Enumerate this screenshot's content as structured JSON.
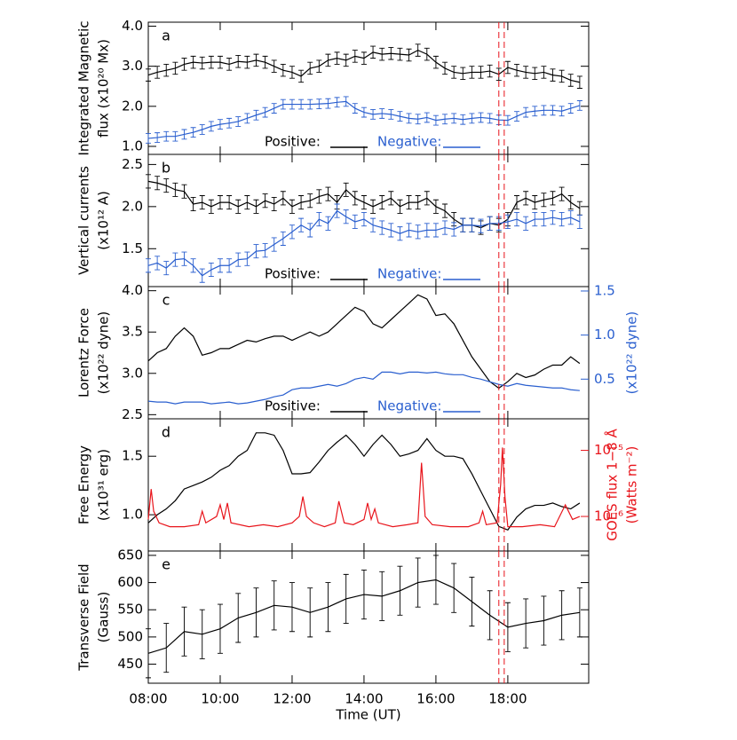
{
  "chart_data": [
    {
      "type": "line",
      "label": "a",
      "ylabel": [
        "Integrated Magnetic",
        "flux (x10²⁰ Mx)"
      ],
      "xlim": [
        8,
        20.25
      ],
      "ylim": [
        0.8,
        4.1
      ],
      "yticks": [
        {
          "value": 1,
          "label": "1.0"
        },
        {
          "value": 2,
          "label": "2.0"
        },
        {
          "value": 3,
          "label": "3.0"
        },
        {
          "value": 4,
          "label": "4.0"
        }
      ],
      "legend": "lower center",
      "vlines": [
        17.75,
        17.9
      ],
      "vline_color": "#e8141b",
      "x": [
        8,
        8.25,
        8.5,
        8.75,
        9,
        9.25,
        9.5,
        9.75,
        10,
        10.25,
        10.5,
        10.75,
        11,
        11.25,
        11.5,
        11.75,
        12,
        12.25,
        12.5,
        12.75,
        13,
        13.25,
        13.5,
        13.75,
        14,
        14.25,
        14.5,
        14.75,
        15,
        15.25,
        15.5,
        15.75,
        16,
        16.25,
        16.5,
        16.75,
        17,
        17.25,
        17.5,
        17.75,
        18,
        18.25,
        18.5,
        18.75,
        19,
        19.25,
        19.5,
        19.75,
        20
      ],
      "series": [
        {
          "name": "Positive:",
          "color": "#000000",
          "error": 0.15,
          "values": [
            2.78,
            2.85,
            2.9,
            2.95,
            3.05,
            3.1,
            3.08,
            3.1,
            3.1,
            3.05,
            3.12,
            3.1,
            3.15,
            3.1,
            3.0,
            2.9,
            2.85,
            2.75,
            2.95,
            3.0,
            3.15,
            3.2,
            3.15,
            3.25,
            3.2,
            3.35,
            3.3,
            3.32,
            3.3,
            3.28,
            3.4,
            3.3,
            3.1,
            2.95,
            2.85,
            2.82,
            2.85,
            2.85,
            2.88,
            2.8,
            2.97,
            2.9,
            2.85,
            2.82,
            2.85,
            2.78,
            2.75,
            2.65,
            2.6
          ]
        },
        {
          "name": "Negative:",
          "color": "#2a5fcf",
          "error": 0.12,
          "values": [
            1.2,
            1.22,
            1.25,
            1.25,
            1.3,
            1.35,
            1.42,
            1.5,
            1.55,
            1.58,
            1.62,
            1.7,
            1.78,
            1.85,
            1.95,
            2.05,
            2.05,
            2.05,
            2.05,
            2.06,
            2.07,
            2.1,
            2.12,
            1.95,
            1.85,
            1.8,
            1.82,
            1.8,
            1.75,
            1.7,
            1.68,
            1.72,
            1.65,
            1.68,
            1.7,
            1.67,
            1.7,
            1.72,
            1.7,
            1.66,
            1.65,
            1.75,
            1.85,
            1.88,
            1.9,
            1.9,
            1.88,
            1.95,
            2.02
          ]
        }
      ]
    },
    {
      "type": "line",
      "label": "b",
      "ylabel": [
        "Vertical currents",
        "(x10¹² A)"
      ],
      "xlim": [
        8,
        20.25
      ],
      "ylim": [
        1.05,
        2.62
      ],
      "yticks": [
        1.5,
        {
          "value": 2,
          "label": "2.0"
        },
        2.5
      ],
      "legend": "lower center",
      "vlines": [
        17.75,
        17.9
      ],
      "vline_color": "#e8141b",
      "x": [
        8,
        8.25,
        8.5,
        8.75,
        9,
        9.25,
        9.5,
        9.75,
        10,
        10.25,
        10.5,
        10.75,
        11,
        11.25,
        11.5,
        11.75,
        12,
        12.25,
        12.5,
        12.75,
        13,
        13.25,
        13.5,
        13.75,
        14,
        14.25,
        14.5,
        14.75,
        15,
        15.25,
        15.5,
        15.75,
        16,
        16.25,
        16.5,
        16.75,
        17,
        17.25,
        17.5,
        17.75,
        18,
        18.25,
        18.5,
        18.75,
        19,
        19.25,
        19.5,
        19.75,
        20
      ],
      "series": [
        {
          "name": "Positive:",
          "color": "#000000",
          "error": 0.08,
          "values": [
            2.3,
            2.28,
            2.25,
            2.2,
            2.18,
            2.03,
            2.05,
            2.0,
            2.05,
            2.05,
            2.0,
            2.05,
            2.0,
            2.07,
            2.03,
            2.1,
            2.0,
            2.05,
            2.07,
            2.12,
            2.15,
            2.05,
            2.2,
            2.1,
            2.05,
            2.0,
            2.05,
            2.1,
            2.0,
            2.05,
            2.05,
            2.1,
            2.0,
            1.95,
            1.85,
            1.78,
            1.78,
            1.75,
            1.8,
            1.78,
            1.85,
            2.05,
            2.1,
            2.05,
            2.08,
            2.1,
            2.15,
            2.05,
            1.98
          ]
        },
        {
          "name": "Negative:",
          "color": "#2a5fcf",
          "error": 0.08,
          "values": [
            1.3,
            1.33,
            1.27,
            1.37,
            1.38,
            1.3,
            1.18,
            1.25,
            1.3,
            1.3,
            1.37,
            1.38,
            1.47,
            1.48,
            1.55,
            1.62,
            1.7,
            1.78,
            1.72,
            1.85,
            1.8,
            1.95,
            1.88,
            1.82,
            1.85,
            1.78,
            1.75,
            1.72,
            1.68,
            1.72,
            1.7,
            1.72,
            1.72,
            1.75,
            1.73,
            1.78,
            1.78,
            1.77,
            1.8,
            1.8,
            1.82,
            1.85,
            1.8,
            1.85,
            1.85,
            1.87,
            1.85,
            1.87,
            1.82
          ]
        }
      ]
    },
    {
      "type": "line",
      "label": "c",
      "ylabel": [
        "Lorentz Force",
        "(x10²² dyne)"
      ],
      "y2label": [
        "(x10²² dyne)"
      ],
      "xlim": [
        8,
        20.25
      ],
      "ylim": [
        2.45,
        4.05
      ],
      "y2lim": [
        0.05,
        1.55
      ],
      "yticks": [
        2.5,
        {
          "value": 3,
          "label": "3.0"
        },
        3.5,
        {
          "value": 4,
          "label": "4.0"
        }
      ],
      "y2ticks": [
        0.5,
        {
          "value": 1,
          "label": "1.0"
        },
        1.5
      ],
      "legend": "lower center",
      "vlines": [
        17.75,
        17.9
      ],
      "vline_color": "#e8141b",
      "x": [
        8,
        8.25,
        8.5,
        8.75,
        9,
        9.25,
        9.5,
        9.75,
        10,
        10.25,
        10.5,
        10.75,
        11,
        11.25,
        11.5,
        11.75,
        12,
        12.25,
        12.5,
        12.75,
        13,
        13.25,
        13.5,
        13.75,
        14,
        14.25,
        14.5,
        14.75,
        15,
        15.25,
        15.5,
        15.75,
        16,
        16.25,
        16.5,
        16.75,
        17,
        17.25,
        17.5,
        17.75,
        18,
        18.25,
        18.5,
        18.75,
        19,
        19.25,
        19.5,
        19.75,
        20
      ],
      "series": [
        {
          "name": "Positive:",
          "color": "#000000",
          "values": [
            3.15,
            3.25,
            3.3,
            3.45,
            3.55,
            3.45,
            3.22,
            3.25,
            3.3,
            3.3,
            3.35,
            3.4,
            3.38,
            3.42,
            3.45,
            3.45,
            3.4,
            3.45,
            3.5,
            3.45,
            3.5,
            3.6,
            3.7,
            3.8,
            3.75,
            3.6,
            3.55,
            3.65,
            3.75,
            3.85,
            3.95,
            3.9,
            3.7,
            3.72,
            3.6,
            3.4,
            3.2,
            3.05,
            2.9,
            2.82,
            2.9,
            3.0,
            2.95,
            2.98,
            3.05,
            3.1,
            3.1,
            3.2,
            3.12
          ]
        },
        {
          "name": "Negative:",
          "color": "#2a5fcf",
          "axis": "y2",
          "values": [
            0.25,
            0.24,
            0.24,
            0.22,
            0.24,
            0.24,
            0.24,
            0.22,
            0.23,
            0.24,
            0.22,
            0.23,
            0.25,
            0.27,
            0.3,
            0.32,
            0.38,
            0.4,
            0.4,
            0.42,
            0.44,
            0.42,
            0.45,
            0.5,
            0.52,
            0.5,
            0.58,
            0.58,
            0.56,
            0.58,
            0.58,
            0.57,
            0.58,
            0.56,
            0.55,
            0.55,
            0.52,
            0.5,
            0.47,
            0.44,
            0.42,
            0.45,
            0.43,
            0.42,
            0.41,
            0.4,
            0.4,
            0.38,
            0.37
          ]
        }
      ]
    },
    {
      "type": "line",
      "label": "d",
      "ylabel": [
        "Free Energy",
        "(x10³¹ erg)"
      ],
      "y2label": [
        "GOES flux 1−8 Å",
        "(Watts m⁻²)"
      ],
      "xlim": [
        8,
        20.25
      ],
      "ylim": [
        0.69,
        1.82
      ],
      "y2lim": [
        3e-07,
        3e-05
      ],
      "y2scale": "log",
      "yticks": [
        {
          "value": 1,
          "label": "1.0"
        },
        1.5
      ],
      "y2ticks": [
        {
          "value": 1e-06,
          "label": "10⁻⁶"
        },
        {
          "value": 1e-05,
          "label": "10⁻⁵"
        }
      ],
      "vlines": [
        17.75,
        17.9
      ],
      "vline_color": "#e8141b",
      "x": [
        8,
        8.25,
        8.5,
        8.75,
        9,
        9.25,
        9.5,
        9.75,
        10,
        10.25,
        10.5,
        10.75,
        11,
        11.25,
        11.5,
        11.75,
        12,
        12.25,
        12.5,
        12.75,
        13,
        13.25,
        13.5,
        13.75,
        14,
        14.25,
        14.5,
        14.75,
        15,
        15.25,
        15.5,
        15.75,
        16,
        16.25,
        16.5,
        16.75,
        17,
        17.25,
        17.5,
        17.75,
        18,
        18.25,
        18.5,
        18.75,
        19,
        19.25,
        19.5,
        19.75,
        20
      ],
      "series": [
        {
          "color": "#000000",
          "values": [
            0.93,
            1.0,
            1.05,
            1.12,
            1.22,
            1.25,
            1.28,
            1.32,
            1.38,
            1.42,
            1.5,
            1.55,
            1.7,
            1.7,
            1.68,
            1.55,
            1.35,
            1.35,
            1.36,
            1.45,
            1.55,
            1.62,
            1.68,
            1.6,
            1.5,
            1.6,
            1.68,
            1.6,
            1.5,
            1.52,
            1.55,
            1.65,
            1.55,
            1.5,
            1.5,
            1.48,
            1.35,
            1.2,
            1.05,
            0.9,
            0.87,
            0.98,
            1.05,
            1.08,
            1.08,
            1.1,
            1.07,
            1.05,
            1.1
          ]
        },
        {
          "color": "#e8141b",
          "axis": "y2",
          "x": [
            8.0,
            8.08,
            8.15,
            8.3,
            8.6,
            9.0,
            9.4,
            9.5,
            9.6,
            9.9,
            10.0,
            10.1,
            10.2,
            10.3,
            10.8,
            11.2,
            11.6,
            12.0,
            12.2,
            12.3,
            12.4,
            12.6,
            12.9,
            13.2,
            13.3,
            13.45,
            13.7,
            14.0,
            14.1,
            14.2,
            14.3,
            14.4,
            14.8,
            15.2,
            15.5,
            15.6,
            15.7,
            15.9,
            16.4,
            16.9,
            17.2,
            17.3,
            17.4,
            17.7,
            17.8,
            17.85,
            17.92,
            18.0,
            18.4,
            18.9,
            19.3,
            19.6,
            19.8,
            20.0
          ],
          "values": [
            9e-07,
            2.6e-06,
            1.2e-06,
            8e-07,
            7e-07,
            7e-07,
            7.5e-07,
            1.2e-06,
            8e-07,
            1e-06,
            1.5e-06,
            9e-07,
            1.6e-06,
            8e-07,
            7e-07,
            7.5e-07,
            7e-07,
            8e-07,
            1e-06,
            2e-06,
            1e-06,
            8e-07,
            7e-07,
            8e-07,
            1.7e-06,
            8e-07,
            7.5e-07,
            9e-07,
            1.6e-06,
            9e-07,
            1.3e-06,
            8e-07,
            7e-07,
            7.5e-07,
            8e-07,
            6.5e-06,
            1e-06,
            7.5e-07,
            7e-07,
            7e-07,
            8e-07,
            1.2e-06,
            7.5e-07,
            8e-07,
            3e-06,
            1.1e-05,
            2e-06,
            7e-07,
            7e-07,
            7.5e-07,
            7e-07,
            1.5e-06,
            9e-07,
            1e-06
          ]
        }
      ]
    },
    {
      "type": "line",
      "label": "e",
      "ylabel": [
        "Transverse Field",
        "(Gauss)"
      ],
      "xlabel": "Time (UT)",
      "xlim": [
        8,
        20.25
      ],
      "ylim": [
        415,
        658
      ],
      "yticks": [
        450,
        500,
        550,
        600,
        650
      ],
      "xticks": [
        {
          "value": 8,
          "label": "08:00"
        },
        {
          "value": 10,
          "label": "10:00"
        },
        {
          "value": 12,
          "label": "12:00"
        },
        {
          "value": 14,
          "label": "14:00"
        },
        {
          "value": 16,
          "label": "16:00"
        },
        {
          "value": 18,
          "label": "18:00"
        }
      ],
      "vlines": [
        17.75,
        17.9
      ],
      "vline_color": "#e8141b",
      "x": [
        8,
        8.5,
        9,
        9.5,
        10,
        10.5,
        11,
        11.5,
        12,
        12.5,
        13,
        13.5,
        14,
        14.5,
        15,
        15.5,
        16,
        16.5,
        17,
        17.5,
        18,
        18.5,
        19,
        19.5,
        20
      ],
      "series": [
        {
          "color": "#000000",
          "error": 45,
          "values": [
            470,
            480,
            510,
            505,
            515,
            535,
            545,
            558,
            555,
            545,
            555,
            570,
            578,
            575,
            585,
            600,
            605,
            590,
            565,
            540,
            518,
            525,
            530,
            540,
            545
          ]
        }
      ]
    }
  ]
}
